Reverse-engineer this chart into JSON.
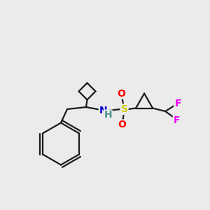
{
  "bg_color": "#ebebeb",
  "bond_color": "#1a1a1a",
  "bond_width": 1.6,
  "atoms": {
    "S": {
      "color": "#cccc00",
      "size": 10
    },
    "O": {
      "color": "#ff0000",
      "size": 10
    },
    "N": {
      "color": "#0000cd",
      "size": 10
    },
    "H": {
      "color": "#4a9090",
      "size": 10
    },
    "F": {
      "color": "#ee00ee",
      "size": 10
    }
  },
  "scale": 10
}
